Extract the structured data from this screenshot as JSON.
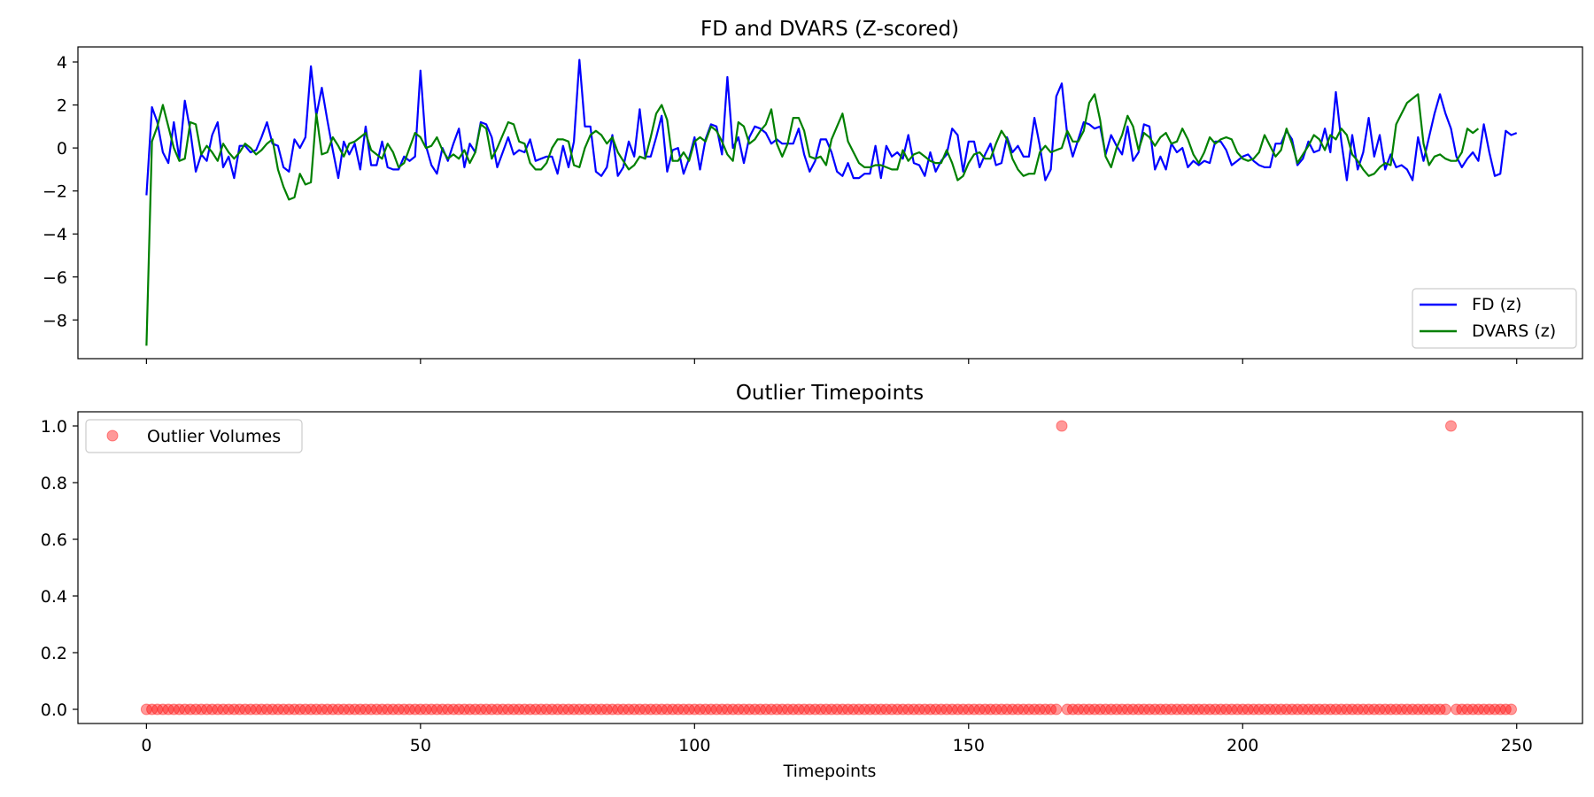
{
  "chart_data": [
    {
      "type": "line",
      "title": "FD and DVARS (Z-scored)",
      "xlabel": "",
      "ylabel": "",
      "xlim": [
        -12.5,
        262
      ],
      "ylim": [
        -9.8,
        4.7
      ],
      "yticks": [
        4,
        2,
        0,
        -2,
        -4,
        -6,
        -8
      ],
      "ytick_labels": [
        "4",
        "2",
        "0",
        "−2",
        "−4",
        "−6",
        "−8"
      ],
      "xticks": [
        0,
        50,
        100,
        150,
        200,
        250
      ],
      "legend_location": "lower-right",
      "series": [
        {
          "name": "FD (z)",
          "color": "#0000ff",
          "values": [
            -2.2,
            1.9,
            1.2,
            -0.2,
            -0.7,
            1.2,
            -0.5,
            2.2,
            0.8,
            -1.1,
            -0.3,
            -0.6,
            0.6,
            1.2,
            -0.9,
            -0.4,
            -1.4,
            0.1,
            0.1,
            -0.2,
            -0.1,
            0.5,
            1.2,
            0.2,
            0.1,
            -0.9,
            -1.1,
            0.4,
            0.0,
            0.5,
            3.8,
            1.5,
            2.8,
            1.3,
            -0.1,
            -1.4,
            0.3,
            -0.3,
            0.2,
            -1.0,
            1.0,
            -0.8,
            -0.8,
            0.3,
            -0.9,
            -1.0,
            -1.0,
            -0.4,
            -0.6,
            -0.4,
            3.6,
            0.1,
            -0.8,
            -1.2,
            0.0,
            -0.6,
            0.2,
            0.9,
            -0.9,
            0.2,
            -0.2,
            1.2,
            1.1,
            0.5,
            -0.9,
            -0.2,
            0.5,
            -0.3,
            -0.1,
            -0.2,
            0.4,
            -0.6,
            -0.5,
            -0.4,
            -0.4,
            -1.2,
            0.1,
            -0.9,
            0.3,
            4.1,
            1.0,
            1.0,
            -1.1,
            -1.3,
            -0.9,
            0.6,
            -1.3,
            -0.9,
            0.3,
            -0.4,
            1.8,
            -0.4,
            -0.4,
            0.5,
            1.5,
            -1.1,
            -0.1,
            0.0,
            -1.2,
            -0.5,
            0.5,
            -1.0,
            0.4,
            1.1,
            1.0,
            -0.3,
            3.3,
            0.0,
            0.5,
            -0.7,
            0.5,
            1.0,
            0.9,
            0.7,
            0.2,
            0.4,
            0.2,
            0.2,
            0.2,
            0.9,
            -0.3,
            -1.1,
            -0.6,
            0.4,
            0.4,
            -0.2,
            -1.1,
            -1.3,
            -0.7,
            -1.4,
            -1.4,
            -1.2,
            -1.2,
            0.1,
            -1.4,
            0.1,
            -0.4,
            -0.2,
            -0.5,
            0.6,
            -0.7,
            -0.8,
            -1.3,
            -0.2,
            -1.1,
            -0.6,
            -0.3,
            0.9,
            0.6,
            -1.1,
            0.3,
            0.3,
            -0.9,
            -0.3,
            0.2,
            -0.8,
            -0.7,
            0.5,
            -0.2,
            0.1,
            -0.4,
            -0.4,
            1.4,
            0.1,
            -1.5,
            -1.0,
            2.4,
            3.0,
            0.6,
            -0.4,
            0.4,
            1.2,
            1.1,
            0.9,
            1.0,
            -0.3,
            0.6,
            0.1,
            -0.3,
            1.0,
            -0.6,
            -0.2,
            1.1,
            1.0,
            -1.0,
            -0.4,
            -1.0,
            0.2,
            -0.2,
            0.0,
            -0.9,
            -0.6,
            -0.8,
            -0.6,
            -0.7,
            0.3,
            0.3,
            -0.1,
            -0.8,
            -0.6,
            -0.4,
            -0.3,
            -0.6,
            -0.8,
            -0.9,
            -0.9,
            0.2,
            0.2,
            0.8,
            0.4,
            -0.8,
            -0.5,
            0.3,
            -0.2,
            -0.1,
            0.9,
            -0.2,
            2.6,
            0.3,
            -1.5,
            0.6,
            -1.0,
            -0.2,
            1.4,
            -0.4,
            0.6,
            -1.0,
            -0.3,
            -0.9,
            -0.8,
            -1.0,
            -1.5,
            0.5,
            -0.6,
            0.5,
            1.6,
            2.5,
            1.6,
            0.9,
            -0.4,
            -0.9,
            -0.5,
            -0.2,
            -0.6,
            1.1,
            -0.2,
            -1.3,
            -1.2,
            0.8,
            0.6,
            0.7
          ],
          "x_start": 0
        },
        {
          "name": "DVARS (z)",
          "color": "#008000",
          "values": [
            -9.2,
            0.3,
            1.0,
            2.0,
            1.0,
            0.0,
            -0.6,
            -0.5,
            1.2,
            1.1,
            -0.3,
            0.1,
            -0.2,
            -0.6,
            0.2,
            -0.2,
            -0.5,
            -0.2,
            0.2,
            0.0,
            -0.3,
            -0.1,
            0.2,
            0.4,
            -1.0,
            -1.8,
            -2.4,
            -2.3,
            -1.2,
            -1.7,
            -1.6,
            1.6,
            -0.3,
            -0.2,
            0.5,
            0.1,
            -0.4,
            0.2,
            0.3,
            0.5,
            0.7,
            -0.1,
            -0.3,
            -0.5,
            0.2,
            -0.2,
            -0.9,
            -0.7,
            0.0,
            0.7,
            0.5,
            0.0,
            0.1,
            0.5,
            -0.1,
            -0.5,
            -0.3,
            -0.5,
            -0.1,
            -0.7,
            -0.2,
            1.1,
            0.9,
            -0.5,
            0.0,
            0.6,
            1.2,
            1.1,
            0.3,
            0.2,
            -0.7,
            -1.0,
            -1.0,
            -0.7,
            0.0,
            0.4,
            0.4,
            0.3,
            -0.8,
            -0.9,
            0.0,
            0.6,
            0.8,
            0.6,
            0.2,
            0.5,
            -0.2,
            -0.6,
            -1.0,
            -0.8,
            -0.4,
            -0.5,
            0.5,
            1.6,
            2.0,
            1.3,
            -0.6,
            -0.6,
            -0.2,
            -0.6,
            0.3,
            0.5,
            0.3,
            1.0,
            0.8,
            0.3,
            -0.3,
            -0.6,
            1.2,
            1.0,
            0.2,
            0.4,
            0.8,
            1.1,
            1.8,
            0.2,
            -0.4,
            0.2,
            1.4,
            1.4,
            0.8,
            -0.4,
            -0.5,
            -0.4,
            -0.8,
            0.4,
            1.0,
            1.6,
            0.3,
            -0.2,
            -0.7,
            -0.9,
            -0.9,
            -0.8,
            -0.8,
            -0.9,
            -1.0,
            -1.0,
            -0.1,
            -0.6,
            -0.3,
            -0.2,
            -0.4,
            -0.6,
            -0.7,
            -0.7,
            -0.1,
            -0.7,
            -1.5,
            -1.3,
            -0.7,
            -0.3,
            -0.2,
            -0.5,
            -0.5,
            0.2,
            0.8,
            0.4,
            -0.5,
            -1.0,
            -1.3,
            -1.2,
            -1.2,
            -0.2,
            0.1,
            -0.2,
            -0.1,
            0.0,
            0.8,
            0.3,
            0.3,
            0.8,
            2.1,
            2.5,
            1.3,
            -0.4,
            -0.9,
            0.0,
            0.6,
            1.5,
            1.0,
            -0.1,
            0.7,
            0.5,
            0.1,
            0.5,
            0.7,
            0.2,
            0.3,
            0.9,
            0.4,
            -0.3,
            -0.7,
            -0.2,
            0.5,
            0.2,
            0.4,
            0.5,
            0.4,
            -0.2,
            -0.5,
            -0.6,
            -0.5,
            -0.2,
            0.6,
            0.1,
            -0.4,
            -0.1,
            0.9,
            0.2,
            -0.7,
            -0.3,
            0.1,
            0.6,
            0.4,
            -0.1,
            0.6,
            0.4,
            0.9,
            0.6,
            -0.3,
            -0.6,
            -1.0,
            -1.3,
            -1.2,
            -0.9,
            -0.7,
            -0.8,
            1.1,
            1.6,
            2.1,
            2.3,
            2.5,
            0.2,
            -0.8,
            -0.4,
            -0.3,
            -0.5,
            -0.6,
            -0.6,
            -0.2,
            0.9,
            0.7,
            0.9
          ],
          "x_start": 0
        }
      ]
    },
    {
      "type": "scatter",
      "title": "Outlier Timepoints",
      "xlabel": "Timepoints",
      "ylabel": "",
      "xlim": [
        -12.5,
        262
      ],
      "ylim": [
        -0.05,
        1.05
      ],
      "yticks": [
        1.0,
        0.8,
        0.6,
        0.4,
        0.2,
        0.0
      ],
      "ytick_labels": [
        "1.0",
        "0.8",
        "0.6",
        "0.4",
        "0.2",
        "0.0"
      ],
      "xticks": [
        0,
        50,
        100,
        150,
        200,
        250
      ],
      "xtick_labels": [
        "0",
        "50",
        "100",
        "150",
        "200",
        "250"
      ],
      "legend_location": "upper-left",
      "series": [
        {
          "name": "Outlier Volumes",
          "color": "#ff0000",
          "alpha": 0.4,
          "n_points": 250,
          "outlier_indices": [
            167,
            238
          ]
        }
      ]
    }
  ]
}
